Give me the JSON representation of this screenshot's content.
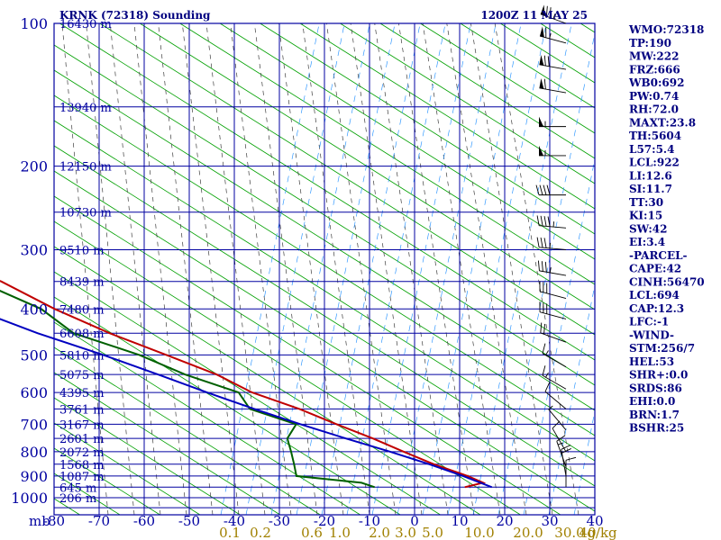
{
  "header": {
    "title": "KRNK (72318) Sounding",
    "valid_time": "1200Z 11 MAY 25"
  },
  "stats": [
    "WMO:72318",
    "TP:190",
    "MW:222",
    "FRZ:666",
    "WB0:692",
    "PW:0.74",
    "RH:72.0",
    "MAXT:23.8",
    "TH:5604",
    "L57:5.4",
    "LCL:922",
    "LI:12.6",
    "SI:11.7",
    "TT:30",
    "KI:15",
    "SW:42",
    "EI:3.4",
    "-PARCEL-",
    "CAPE:42",
    "CINH:56470",
    "LCL:694",
    "CAP:12.3",
    "LFC:-1",
    "-WIND-",
    "STM:256/7",
    "HEL:53",
    "SHR+:0.0",
    "SRDS:86",
    "EHI:0.0",
    "BRN:1.7",
    "BSHR:25"
  ],
  "colors": {
    "grid": "#0000a0",
    "dry_adiabat": "#00a000",
    "moist_adiabat": "#404040",
    "mixing_ratio": "#3399ff",
    "temperature": "#c00000",
    "dewpoint": "#006000",
    "parcel": "#0000c0",
    "stats_text": "#000080",
    "mixing_label": "#a08000",
    "wind_barb": "#000000"
  },
  "chart_data": {
    "type": "line",
    "chart_kind": "skew-T log-p sounding",
    "y_axis_unit": "mb",
    "x_axis_unit": "C",
    "pressure_ticks": [
      100,
      200,
      300,
      400,
      500,
      600,
      700,
      800,
      900,
      1000
    ],
    "pressure_tick_labels": [
      "100",
      "200",
      "300",
      "400",
      "500",
      "600",
      "700",
      "800",
      "900",
      "1000"
    ],
    "temperature_ticks": [
      -80,
      -70,
      -60,
      -50,
      -40,
      -30,
      -20,
      -10,
      0,
      10,
      20,
      30,
      40
    ],
    "temperature_tick_labels": [
      "-80",
      "-70",
      "-60",
      "-50",
      "-40",
      "-30",
      "-20",
      "-10",
      "0",
      "10",
      "20",
      "30",
      "40"
    ],
    "mixing_ratio_labels": [
      "0.1",
      "0.2",
      "0.6",
      "1.0",
      "2.0",
      "3.0",
      "5.0",
      "10.0",
      "20.0",
      "30.0",
      "40",
      "g/kg"
    ],
    "height_labels": [
      {
        "p": 100,
        "text": "16430 m"
      },
      {
        "p": 150,
        "text": "13940 m"
      },
      {
        "p": 200,
        "text": "12150 m"
      },
      {
        "p": 250,
        "text": "10730 m"
      },
      {
        "p": 300,
        "text": "9510 m"
      },
      {
        "p": 350,
        "text": "8439 m"
      },
      {
        "p": 400,
        "text": "7480 m"
      },
      {
        "p": 450,
        "text": "6608 m"
      },
      {
        "p": 500,
        "text": "5810 m"
      },
      {
        "p": 550,
        "text": "5075 m"
      },
      {
        "p": 600,
        "text": "4395 m"
      },
      {
        "p": 650,
        "text": "3761 m"
      },
      {
        "p": 700,
        "text": "3167 m"
      },
      {
        "p": 750,
        "text": "2601 m"
      },
      {
        "p": 800,
        "text": "2072 m"
      },
      {
        "p": 850,
        "text": "1568 m"
      },
      {
        "p": 900,
        "text": "1087 m"
      },
      {
        "p": 950,
        "text": "645 m"
      },
      {
        "p": 1000,
        "text": "206 m"
      }
    ],
    "series": [
      {
        "name": "",
        "role": "temperature",
        "points": [
          [
            100,
            -76
          ],
          [
            150,
            -78
          ],
          [
            160,
            -79
          ],
          [
            180,
            -81
          ],
          [
            200,
            -80
          ],
          [
            215,
            -79
          ],
          [
            250,
            -69
          ],
          [
            300,
            -57
          ],
          [
            350,
            -46
          ],
          [
            400,
            -40
          ],
          [
            450,
            -33
          ],
          [
            500,
            -25
          ],
          [
            550,
            -18
          ],
          [
            600,
            -14
          ],
          [
            650,
            -7
          ],
          [
            700,
            -2
          ],
          [
            750,
            3
          ],
          [
            800,
            7
          ],
          [
            850,
            11
          ],
          [
            900,
            16
          ],
          [
            930,
            18
          ],
          [
            950,
            13
          ]
        ]
      },
      {
        "name": "",
        "role": "dewpoint",
        "points": [
          [
            120,
            -108
          ],
          [
            150,
            -98
          ],
          [
            160,
            -94
          ],
          [
            190,
            -96
          ],
          [
            200,
            -95
          ],
          [
            215,
            -94
          ],
          [
            250,
            -79
          ],
          [
            300,
            -65
          ],
          [
            350,
            -51
          ],
          [
            400,
            -43
          ],
          [
            450,
            -41
          ],
          [
            500,
            -31
          ],
          [
            550,
            -25
          ],
          [
            600,
            -17
          ],
          [
            650,
            -18
          ],
          [
            700,
            -11
          ],
          [
            750,
            -16
          ],
          [
            800,
            -18
          ],
          [
            850,
            -20
          ],
          [
            900,
            -22
          ],
          [
            930,
            -9
          ],
          [
            950,
            -7
          ]
        ]
      },
      {
        "name": "",
        "role": "parcel",
        "points": [
          [
            200,
            -101
          ],
          [
            250,
            -89
          ],
          [
            300,
            -76
          ],
          [
            350,
            -67
          ],
          [
            400,
            -58
          ],
          [
            450,
            -49
          ],
          [
            500,
            -39
          ],
          [
            550,
            -31
          ],
          [
            600,
            -24
          ],
          [
            650,
            -17
          ],
          [
            700,
            -10
          ],
          [
            750,
            -3
          ],
          [
            800,
            4
          ],
          [
            850,
            10
          ],
          [
            900,
            15
          ],
          [
            950,
            19
          ]
        ]
      }
    ],
    "xlim": [
      -80,
      40
    ],
    "ylim": [
      100,
      1050
    ],
    "grid": true,
    "wind_barbs": [
      {
        "p": 100,
        "dir": 290,
        "speed": 75
      },
      {
        "p": 110,
        "dir": 285,
        "speed": 65
      },
      {
        "p": 125,
        "dir": 280,
        "speed": 70
      },
      {
        "p": 140,
        "dir": 280,
        "speed": 60
      },
      {
        "p": 165,
        "dir": 270,
        "speed": 55
      },
      {
        "p": 190,
        "dir": 270,
        "speed": 55
      },
      {
        "p": 230,
        "dir": 270,
        "speed": 40
      },
      {
        "p": 270,
        "dir": 275,
        "speed": 45
      },
      {
        "p": 300,
        "dir": 275,
        "speed": 35
      },
      {
        "p": 340,
        "dir": 280,
        "speed": 35
      },
      {
        "p": 380,
        "dir": 285,
        "speed": 30
      },
      {
        "p": 420,
        "dir": 285,
        "speed": 30
      },
      {
        "p": 470,
        "dir": 290,
        "speed": 20
      },
      {
        "p": 530,
        "dir": 300,
        "speed": 15
      },
      {
        "p": 590,
        "dir": 300,
        "speed": 15
      },
      {
        "p": 650,
        "dir": 310,
        "speed": 10
      },
      {
        "p": 720,
        "dir": 320,
        "speed": 5
      },
      {
        "p": 800,
        "dir": 330,
        "speed": 10
      },
      {
        "p": 860,
        "dir": 340,
        "speed": 15
      },
      {
        "p": 900,
        "dir": 350,
        "speed": 20
      },
      {
        "p": 950,
        "dir": 0,
        "speed": 10
      }
    ]
  }
}
